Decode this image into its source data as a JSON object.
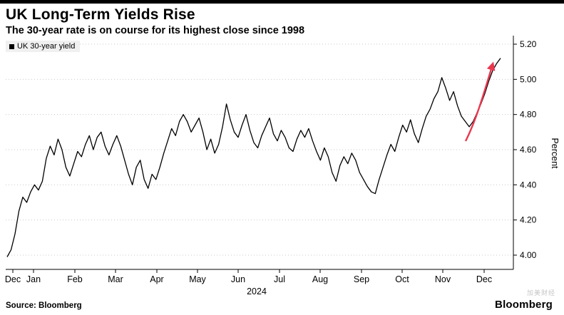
{
  "chart_data": {
    "type": "line",
    "title": "UK Long-Term Yields Rise",
    "subtitle": "The 30-year rate is on course for its highest close since 1998",
    "ylabel": "Percent",
    "ylim": [
      3.93,
      5.25
    ],
    "y_ticks": [
      "4.00",
      "4.20",
      "4.40",
      "4.60",
      "4.80",
      "5.00",
      "5.20"
    ],
    "x_tick_labels": [
      "Dec",
      "Jan",
      "Feb",
      "Mar",
      "Apr",
      "May",
      "Jun",
      "Jul",
      "Aug",
      "Sep",
      "Oct",
      "Nov",
      "Dec"
    ],
    "x_axis_year": "2024",
    "grid": "dotted-horizontal",
    "legend_position": "top-left",
    "series": [
      {
        "name": "UK 30-year yield",
        "color": "#000000",
        "values": [
          3.99,
          4.03,
          4.12,
          4.25,
          4.33,
          4.3,
          4.36,
          4.4,
          4.37,
          4.42,
          4.55,
          4.62,
          4.57,
          4.66,
          4.6,
          4.5,
          4.45,
          4.52,
          4.59,
          4.56,
          4.63,
          4.68,
          4.6,
          4.67,
          4.7,
          4.62,
          4.57,
          4.63,
          4.68,
          4.62,
          4.54,
          4.46,
          4.4,
          4.5,
          4.54,
          4.43,
          4.38,
          4.46,
          4.43,
          4.5,
          4.58,
          4.65,
          4.72,
          4.68,
          4.76,
          4.8,
          4.76,
          4.7,
          4.74,
          4.78,
          4.7,
          4.6,
          4.66,
          4.58,
          4.63,
          4.73,
          4.86,
          4.77,
          4.7,
          4.67,
          4.74,
          4.8,
          4.71,
          4.64,
          4.61,
          4.68,
          4.73,
          4.78,
          4.69,
          4.65,
          4.71,
          4.67,
          4.61,
          4.59,
          4.66,
          4.71,
          4.67,
          4.72,
          4.65,
          4.59,
          4.54,
          4.61,
          4.56,
          4.47,
          4.42,
          4.51,
          4.56,
          4.52,
          4.58,
          4.54,
          4.47,
          4.43,
          4.39,
          4.36,
          4.35,
          4.43,
          4.5,
          4.57,
          4.63,
          4.59,
          4.67,
          4.74,
          4.7,
          4.77,
          4.69,
          4.64,
          4.72,
          4.79,
          4.83,
          4.89,
          4.93,
          5.01,
          4.95,
          4.88,
          4.93,
          4.85,
          4.79,
          4.76,
          4.73,
          4.76,
          4.81,
          4.86,
          4.92,
          4.99,
          5.05,
          5.09,
          5.12
        ]
      }
    ],
    "annotation": {
      "type": "arrow",
      "color": "#e8384f",
      "meaning": "highlights final rise of yield line"
    }
  },
  "legend": {
    "label": "UK 30-year yield"
  },
  "footer": {
    "source": "Source: Bloomberg",
    "logo": "Bloomberg",
    "watermark": "加美财经"
  },
  "colors": {
    "grid": "#c9c9c9",
    "axis": "#000000",
    "line": "#000000",
    "arrow": "#e8384f"
  }
}
